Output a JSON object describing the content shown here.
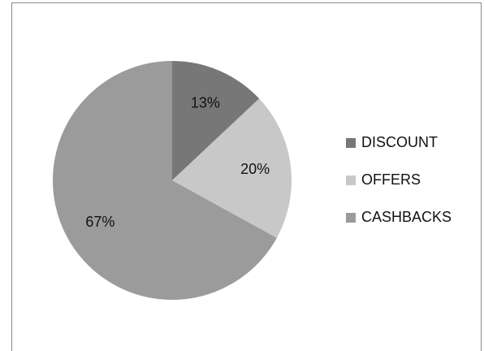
{
  "chart_data": {
    "type": "pie",
    "categories": [
      "DISCOUNT",
      "OFFERS",
      "CASHBACKS"
    ],
    "values": [
      13,
      20,
      67
    ],
    "value_labels": [
      "13%",
      "20%",
      "67%"
    ],
    "colors": [
      "#777777",
      "#c8c8c8",
      "#9b9b9b"
    ],
    "legend": "right"
  }
}
